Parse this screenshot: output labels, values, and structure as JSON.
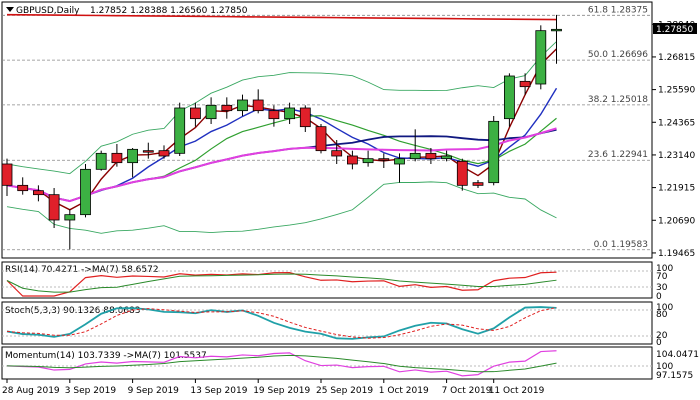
{
  "header": {
    "symbol": "GBPUSD,Daily",
    "ohlc": "1.27852 1.28388 1.26560 1.27850"
  },
  "main_panel": {
    "price_ticks": [
      "1.28040",
      "1.26815",
      "1.25590",
      "1.24365",
      "1.23140",
      "1.21915",
      "1.20690",
      "1.19465"
    ],
    "current_price": "1.27850",
    "fib_levels": [
      {
        "label": "61.8 1.28375",
        "price": 1.28375
      },
      {
        "label": "50.0 1.26696",
        "price": 1.26696
      },
      {
        "label": "38.2 1.25018",
        "price": 1.25018
      },
      {
        "label": "23.6 1.22941",
        "price": 1.22941
      },
      {
        "label": "0.0 1.19583",
        "price": 1.19583
      }
    ]
  },
  "rsi_panel": {
    "title": "RSI(14) 70.4271  ->MA(7) 58.6572",
    "ticks": [
      "100",
      "70",
      "30",
      "0"
    ]
  },
  "stoch_panel": {
    "title": "Stoch(5,3,3) 90.1326 88.0683",
    "ticks": [
      "100",
      "80",
      "20",
      "0"
    ]
  },
  "momentum_panel": {
    "title": "Momentum(14) 103.7339  ->MA(7) 101.5537",
    "ticks": [
      "104.0471",
      "100",
      "97.1575"
    ]
  },
  "x_axis": {
    "labels": [
      "28 Aug 2019",
      "3 Sep 2019",
      "9 Sep 2019",
      "13 Sep 2019",
      "19 Sep 2019",
      "25 Sep 2019",
      "1 Oct 2019",
      "7 Oct 2019",
      "11 Oct 2019"
    ]
  },
  "chart_data": {
    "type": "candlestick",
    "ylim": [
      1.1935,
      1.288
    ],
    "candles": [
      {
        "o": 1.228,
        "h": 1.23,
        "l": 1.216,
        "c": 1.22
      },
      {
        "o": 1.22,
        "h": 1.223,
        "l": 1.2165,
        "c": 1.218
      },
      {
        "o": 1.218,
        "h": 1.22,
        "l": 1.214,
        "c": 1.2165
      },
      {
        "o": 1.2165,
        "h": 1.219,
        "l": 1.204,
        "c": 1.207
      },
      {
        "o": 1.207,
        "h": 1.211,
        "l": 1.196,
        "c": 1.209
      },
      {
        "o": 1.209,
        "h": 1.228,
        "l": 1.208,
        "c": 1.226
      },
      {
        "o": 1.226,
        "h": 1.233,
        "l": 1.2255,
        "c": 1.232
      },
      {
        "o": 1.232,
        "h": 1.2355,
        "l": 1.227,
        "c": 1.2285
      },
      {
        "o": 1.2285,
        "h": 1.234,
        "l": 1.223,
        "c": 1.2335
      },
      {
        "o": 1.233,
        "h": 1.236,
        "l": 1.23,
        "c": 1.2325
      },
      {
        "o": 1.233,
        "h": 1.235,
        "l": 1.23,
        "c": 1.231
      },
      {
        "o": 1.232,
        "h": 1.251,
        "l": 1.231,
        "c": 1.249
      },
      {
        "o": 1.249,
        "h": 1.251,
        "l": 1.242,
        "c": 1.245
      },
      {
        "o": 1.245,
        "h": 1.253,
        "l": 1.243,
        "c": 1.25
      },
      {
        "o": 1.25,
        "h": 1.253,
        "l": 1.245,
        "c": 1.248
      },
      {
        "o": 1.248,
        "h": 1.254,
        "l": 1.246,
        "c": 1.252
      },
      {
        "o": 1.252,
        "h": 1.256,
        "l": 1.247,
        "c": 1.248
      },
      {
        "o": 1.248,
        "h": 1.25,
        "l": 1.242,
        "c": 1.245
      },
      {
        "o": 1.245,
        "h": 1.251,
        "l": 1.243,
        "c": 1.249
      },
      {
        "o": 1.249,
        "h": 1.25,
        "l": 1.24,
        "c": 1.242
      },
      {
        "o": 1.242,
        "h": 1.243,
        "l": 1.232,
        "c": 1.233
      },
      {
        "o": 1.233,
        "h": 1.237,
        "l": 1.228,
        "c": 1.231
      },
      {
        "o": 1.231,
        "h": 1.233,
        "l": 1.226,
        "c": 1.228
      },
      {
        "o": 1.2285,
        "h": 1.233,
        "l": 1.227,
        "c": 1.23
      },
      {
        "o": 1.23,
        "h": 1.232,
        "l": 1.2265,
        "c": 1.2295
      },
      {
        "o": 1.228,
        "h": 1.232,
        "l": 1.221,
        "c": 1.23
      },
      {
        "o": 1.23,
        "h": 1.241,
        "l": 1.229,
        "c": 1.232
      },
      {
        "o": 1.232,
        "h": 1.234,
        "l": 1.228,
        "c": 1.23
      },
      {
        "o": 1.23,
        "h": 1.233,
        "l": 1.229,
        "c": 1.231
      },
      {
        "o": 1.229,
        "h": 1.23,
        "l": 1.218,
        "c": 1.22
      },
      {
        "o": 1.221,
        "h": 1.222,
        "l": 1.219,
        "c": 1.22
      },
      {
        "o": 1.221,
        "h": 1.246,
        "l": 1.22,
        "c": 1.244
      },
      {
        "o": 1.245,
        "h": 1.262,
        "l": 1.242,
        "c": 1.261
      },
      {
        "o": 1.259,
        "h": 1.262,
        "l": 1.254,
        "c": 1.257
      },
      {
        "o": 1.258,
        "h": 1.28,
        "l": 1.256,
        "c": 1.278
      },
      {
        "o": 1.2785,
        "h": 1.2839,
        "l": 1.2656,
        "c": 1.2785
      }
    ],
    "colors": {
      "bull": "#3cb043",
      "bear": "#e0202a",
      "ma_red": "#d01010",
      "ma_darkblue": "#101880",
      "ma_magenta": "#e040e0",
      "bb": "#3aa862"
    }
  }
}
